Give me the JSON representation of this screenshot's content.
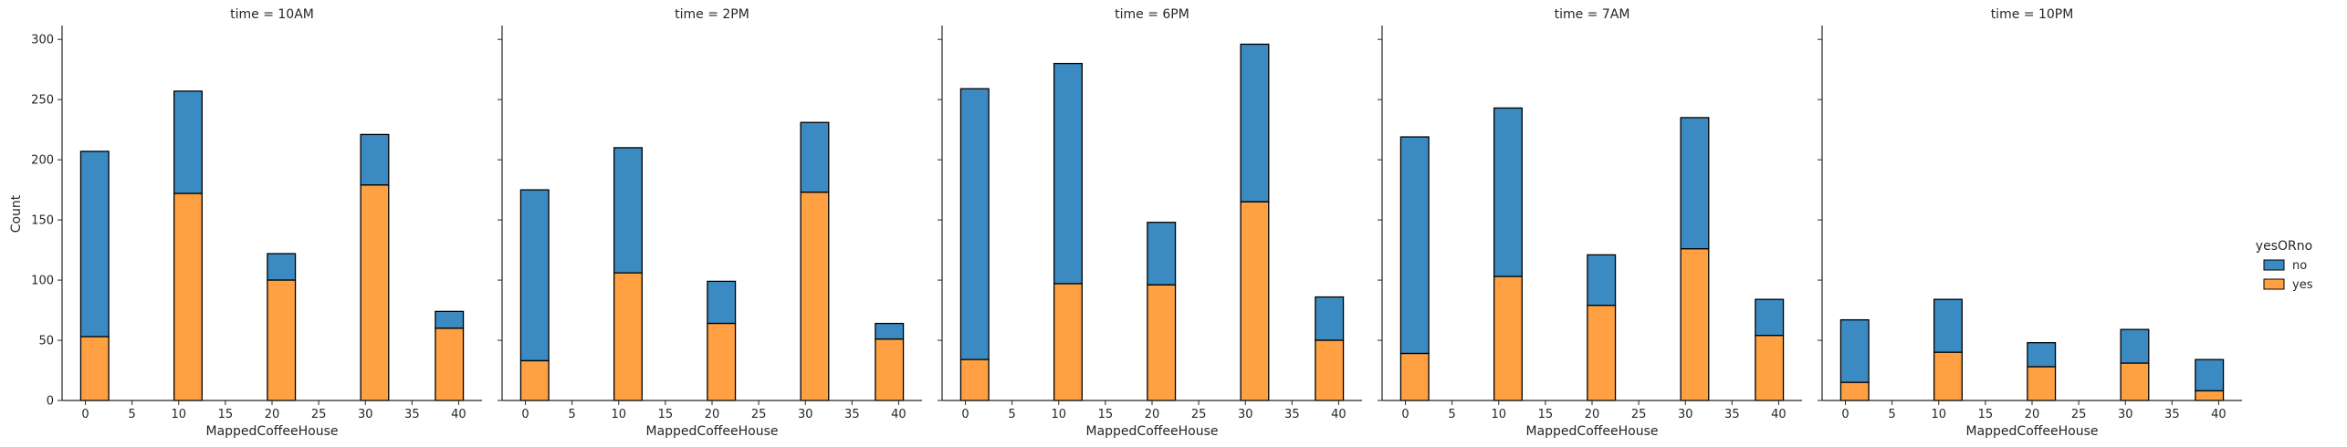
{
  "chart_data": {
    "type": "bar",
    "stacked": true,
    "facet_variable": "time",
    "xlabel": "MappedCoffeeHouse",
    "ylabel": "Count",
    "xlim": [
      -2.5,
      42.5
    ],
    "ylim": [
      0,
      310
    ],
    "xticks": [
      0,
      5,
      10,
      15,
      20,
      25,
      30,
      35,
      40
    ],
    "yticks": [
      0,
      50,
      100,
      150,
      200,
      250,
      300
    ],
    "bin_width": 3,
    "bin_centers": [
      1,
      11,
      21,
      31,
      39
    ],
    "legend": {
      "title": "yesORno",
      "placement": "center-right",
      "entries": [
        {
          "label": "no",
          "color": "#1f77b4"
        },
        {
          "label": "yes",
          "color": "#ff7f0e"
        }
      ]
    },
    "colors": {
      "no": "#3b8bc2",
      "yes": "#ffa042",
      "edge": "#000000"
    },
    "panels": [
      {
        "title": "time = 10AM",
        "yes": [
          53,
          172,
          100,
          179,
          60
        ],
        "total": [
          207,
          257,
          122,
          221,
          74
        ]
      },
      {
        "title": "time = 2PM",
        "yes": [
          33,
          106,
          64,
          173,
          51
        ],
        "total": [
          175,
          210,
          99,
          231,
          64
        ]
      },
      {
        "title": "time = 6PM",
        "yes": [
          34,
          97,
          96,
          165,
          50
        ],
        "total": [
          259,
          280,
          148,
          296,
          86
        ]
      },
      {
        "title": "time = 7AM",
        "yes": [
          39,
          103,
          79,
          126,
          54
        ],
        "total": [
          219,
          243,
          121,
          235,
          84
        ]
      },
      {
        "title": "time = 10PM",
        "yes": [
          15,
          40,
          28,
          31,
          8
        ],
        "total": [
          67,
          84,
          48,
          59,
          34
        ]
      }
    ]
  }
}
